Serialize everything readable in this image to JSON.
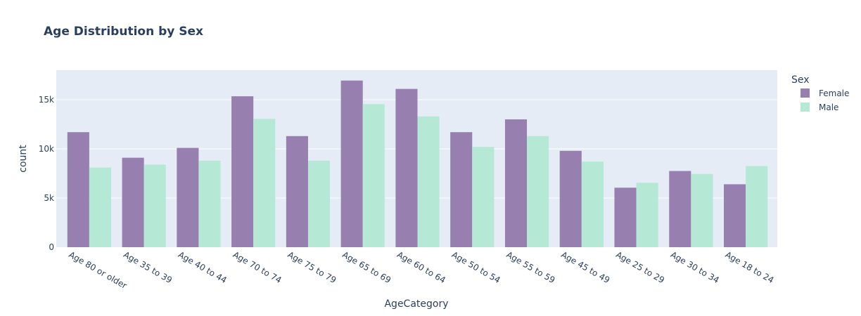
{
  "chart_data": {
    "type": "bar",
    "title": "Age Distribution by Sex",
    "xlabel": "AgeCategory",
    "ylabel": "count",
    "ylim": [
      0,
      18000
    ],
    "yticks": [
      {
        "value": 0,
        "label": "0"
      },
      {
        "value": 5000,
        "label": "5k"
      },
      {
        "value": 10000,
        "label": "10k"
      },
      {
        "value": 15000,
        "label": "15k"
      }
    ],
    "grid": true,
    "legend_title": "Sex",
    "legend_position": "top-right",
    "categories": [
      "Age 80 or older",
      "Age 35 to 39",
      "Age 40 to 44",
      "Age 70 to 74",
      "Age 75 to 79",
      "Age 65 to 69",
      "Age 60 to 64",
      "Age 50 to 54",
      "Age 55 to 59",
      "Age 45 to 49",
      "Age 25 to 29",
      "Age 30 to 34",
      "Age 18 to 24"
    ],
    "series": [
      {
        "name": "Female",
        "color": "#9780b0",
        "values": [
          11700,
          9100,
          10100,
          15350,
          11300,
          16950,
          16100,
          11700,
          13000,
          9800,
          6050,
          7750,
          6400
        ]
      },
      {
        "name": "Male",
        "color": "#b5e9d5",
        "values": [
          8100,
          8400,
          8800,
          13050,
          8800,
          14550,
          13300,
          10200,
          11300,
          8700,
          6550,
          7450,
          8250
        ]
      }
    ]
  }
}
